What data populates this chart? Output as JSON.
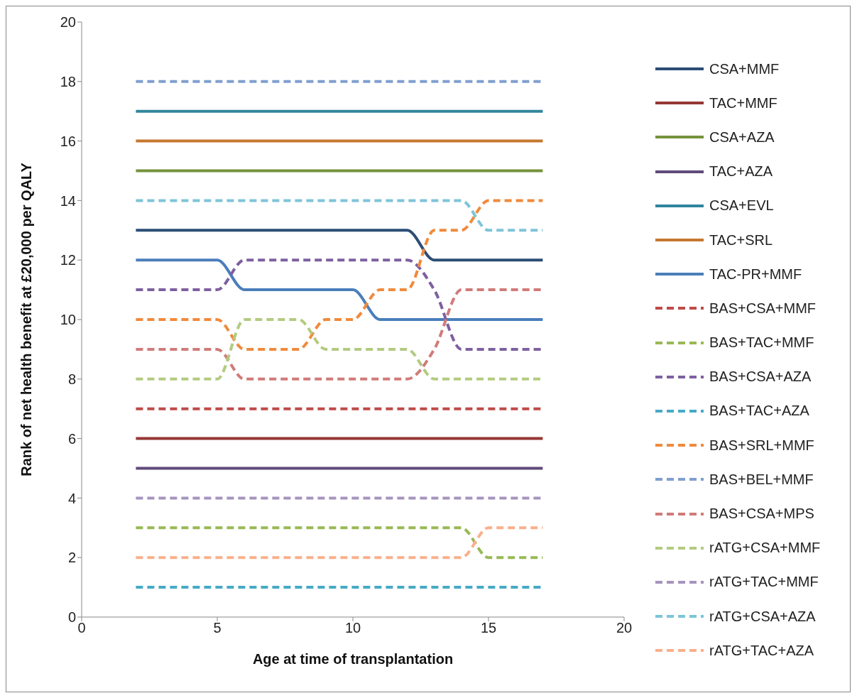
{
  "chart_data": {
    "type": "line",
    "xlabel": "Age at time of transplantation",
    "ylabel": "Rank of net health benefit at £20,000 per QALY",
    "x": [
      2,
      3,
      4,
      5,
      6,
      7,
      8,
      9,
      10,
      11,
      12,
      13,
      14,
      15,
      16,
      17
    ],
    "xlim": [
      0,
      20
    ],
    "xticks": [
      0,
      5,
      10,
      15,
      20
    ],
    "ylim": [
      0,
      20
    ],
    "yticks": [
      0,
      2,
      4,
      6,
      8,
      10,
      12,
      14,
      16,
      18,
      20
    ],
    "grid": false,
    "legend": "right",
    "marker": "none",
    "series": [
      {
        "name": "CSA+MMF",
        "color": "#2c4d75",
        "line_style": "solid",
        "values": [
          13,
          13,
          13,
          13,
          13,
          13,
          13,
          13,
          13,
          13,
          13,
          12,
          12,
          12,
          12,
          12
        ]
      },
      {
        "name": "TAC+MMF",
        "color": "#953735",
        "line_style": "solid",
        "values": [
          6,
          6,
          6,
          6,
          6,
          6,
          6,
          6,
          6,
          6,
          6,
          6,
          6,
          6,
          6,
          6
        ]
      },
      {
        "name": "CSA+AZA",
        "color": "#76923c",
        "line_style": "solid",
        "values": [
          15,
          15,
          15,
          15,
          15,
          15,
          15,
          15,
          15,
          15,
          15,
          15,
          15,
          15,
          15,
          15
        ]
      },
      {
        "name": "TAC+AZA",
        "color": "#604a7b",
        "line_style": "solid",
        "values": [
          5,
          5,
          5,
          5,
          5,
          5,
          5,
          5,
          5,
          5,
          5,
          5,
          5,
          5,
          5,
          5
        ]
      },
      {
        "name": "CSA+EVL",
        "color": "#31859c",
        "line_style": "solid",
        "values": [
          17,
          17,
          17,
          17,
          17,
          17,
          17,
          17,
          17,
          17,
          17,
          17,
          17,
          17,
          17,
          17
        ]
      },
      {
        "name": "TAC+SRL",
        "color": "#c5772f",
        "line_style": "solid",
        "values": [
          16,
          16,
          16,
          16,
          16,
          16,
          16,
          16,
          16,
          16,
          16,
          16,
          16,
          16,
          16,
          16
        ]
      },
      {
        "name": "TAC-PR+MMF",
        "color": "#4a7ebb",
        "line_style": "solid",
        "values": [
          12,
          12,
          12,
          12,
          11,
          11,
          11,
          11,
          11,
          10,
          10,
          10,
          10,
          10,
          10,
          10
        ]
      },
      {
        "name": "BAS+CSA+MMF",
        "color": "#be4b48",
        "line_style": "dashed",
        "values": [
          7,
          7,
          7,
          7,
          7,
          7,
          7,
          7,
          7,
          7,
          7,
          7,
          7,
          7,
          7,
          7
        ]
      },
      {
        "name": "BAS+TAC+MMF",
        "color": "#98b954",
        "line_style": "dashed",
        "values": [
          3,
          3,
          3,
          3,
          3,
          3,
          3,
          3,
          3,
          3,
          3,
          3,
          3,
          2,
          2,
          2
        ]
      },
      {
        "name": "BAS+CSA+AZA",
        "color": "#7d60a0",
        "line_style": "dashed",
        "values": [
          11,
          11,
          11,
          11,
          12,
          12,
          12,
          12,
          12,
          12,
          12,
          11,
          9,
          9,
          9,
          9
        ]
      },
      {
        "name": "BAS+TAC+AZA",
        "color": "#46aac5",
        "line_style": "dashed",
        "values": [
          1,
          1,
          1,
          1,
          1,
          1,
          1,
          1,
          1,
          1,
          1,
          1,
          1,
          1,
          1,
          1
        ]
      },
      {
        "name": "BAS+SRL+MMF",
        "color": "#f08a3c",
        "line_style": "dashed",
        "values": [
          10,
          10,
          10,
          10,
          9,
          9,
          9,
          10,
          10,
          11,
          11,
          13,
          13,
          14,
          14,
          14
        ]
      },
      {
        "name": "BAS+BEL+MMF",
        "color": "#7f9fcf",
        "line_style": "dashed",
        "values": [
          18,
          18,
          18,
          18,
          18,
          18,
          18,
          18,
          18,
          18,
          18,
          18,
          18,
          18,
          18,
          18
        ]
      },
      {
        "name": "BAS+CSA+MPS",
        "color": "#d07b79",
        "line_style": "dashed",
        "values": [
          9,
          9,
          9,
          9,
          8,
          8,
          8,
          8,
          8,
          8,
          8,
          9,
          11,
          11,
          11,
          11
        ]
      },
      {
        "name": "rATG+CSA+MMF",
        "color": "#b3cb80",
        "line_style": "dashed",
        "values": [
          8,
          8,
          8,
          8,
          10,
          10,
          10,
          9,
          9,
          9,
          9,
          8,
          8,
          8,
          8,
          8
        ]
      },
      {
        "name": "rATG+TAC+MMF",
        "color": "#a694bd",
        "line_style": "dashed",
        "values": [
          4,
          4,
          4,
          4,
          4,
          4,
          4,
          4,
          4,
          4,
          4,
          4,
          4,
          4,
          4,
          4
        ]
      },
      {
        "name": "rATG+CSA+AZA",
        "color": "#7ec4d8",
        "line_style": "dashed",
        "values": [
          14,
          14,
          14,
          14,
          14,
          14,
          14,
          14,
          14,
          14,
          14,
          14,
          14,
          13,
          13,
          13
        ]
      },
      {
        "name": "rATG+TAC+AZA",
        "color": "#f9b08a",
        "line_style": "dashed",
        "values": [
          2,
          2,
          2,
          2,
          2,
          2,
          2,
          2,
          2,
          2,
          2,
          2,
          2,
          3,
          3,
          3
        ]
      }
    ]
  }
}
